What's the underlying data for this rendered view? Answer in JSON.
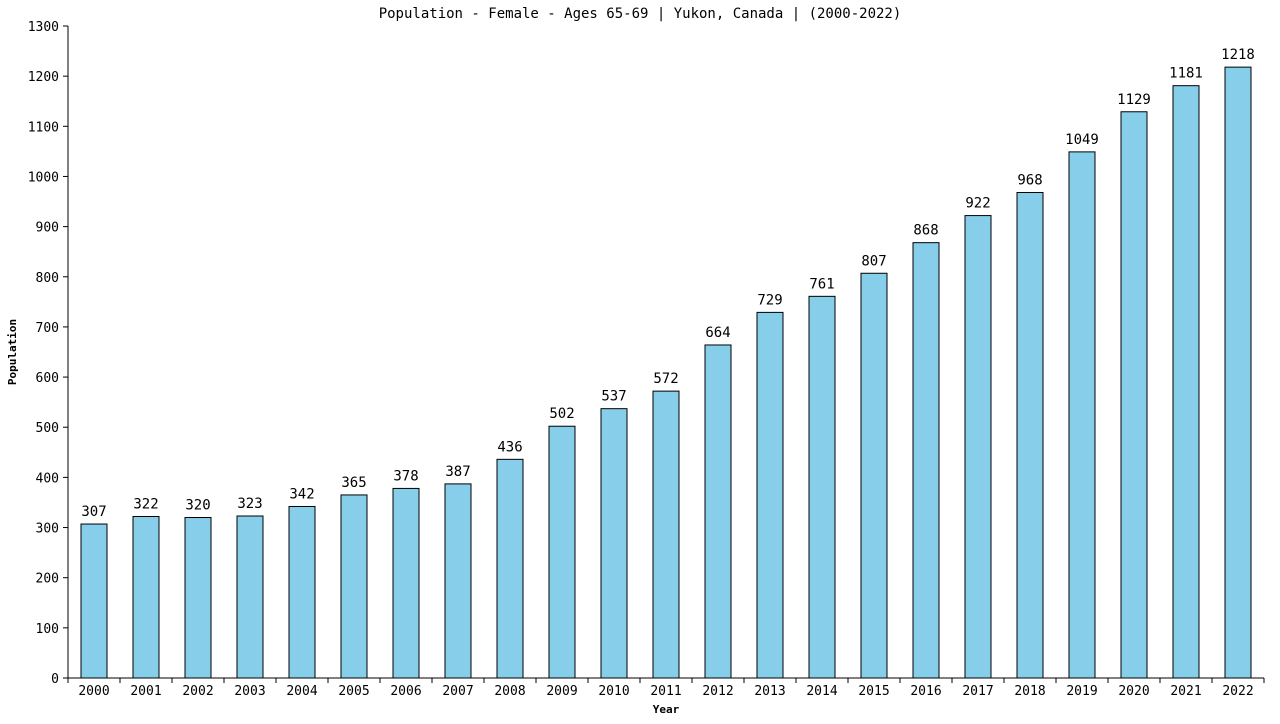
{
  "chart_data": {
    "type": "bar",
    "title": "Population - Female - Ages 65-69 | Yukon, Canada |  (2000-2022)",
    "xlabel": "Year",
    "ylabel": "Population",
    "ylim": [
      0,
      1300
    ],
    "yticks": [
      0,
      100,
      200,
      300,
      400,
      500,
      600,
      700,
      800,
      900,
      1000,
      1100,
      1200,
      1300
    ],
    "categories": [
      "2000",
      "2001",
      "2002",
      "2003",
      "2004",
      "2005",
      "2006",
      "2007",
      "2008",
      "2009",
      "2010",
      "2011",
      "2012",
      "2013",
      "2014",
      "2015",
      "2016",
      "2017",
      "2018",
      "2019",
      "2020",
      "2021",
      "2022"
    ],
    "values": [
      307,
      322,
      320,
      323,
      342,
      365,
      378,
      387,
      436,
      502,
      537,
      572,
      664,
      729,
      761,
      807,
      868,
      922,
      968,
      1049,
      1129,
      1181,
      1218
    ],
    "bar_color": "#87CEEB",
    "bar_stroke": "#000000",
    "grid": false,
    "legend": "none"
  }
}
